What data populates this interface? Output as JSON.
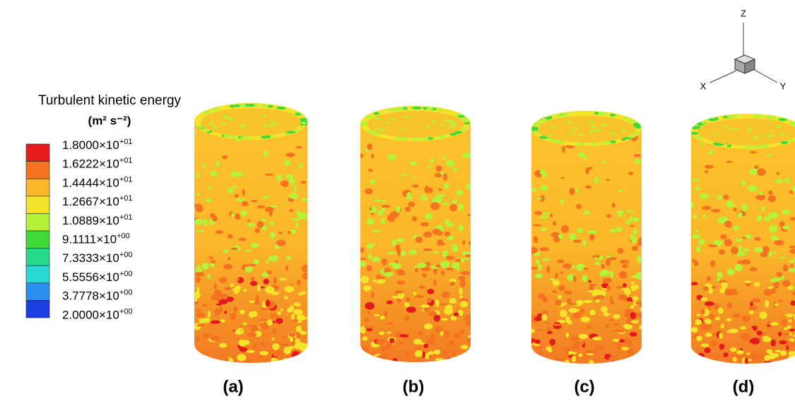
{
  "legend": {
    "title": "Turbulent kinetic energy",
    "units": "(m² s⁻²)",
    "entries": [
      {
        "mantissa": "1.8000×10",
        "exponent": "+01",
        "color": "#e41a1c"
      },
      {
        "mantissa": "1.6222×10",
        "exponent": "+01",
        "color": "#f47320"
      },
      {
        "mantissa": "1.4444×10",
        "exponent": "+01",
        "color": "#fbb62a"
      },
      {
        "mantissa": "1.2667×10",
        "exponent": "+01",
        "color": "#f3e32a"
      },
      {
        "mantissa": "1.0889×10",
        "exponent": "+01",
        "color": "#b5f23a"
      },
      {
        "mantissa": "9.1111×10",
        "exponent": "+00",
        "color": "#3fd93a"
      },
      {
        "mantissa": "7.3333×10",
        "exponent": "+00",
        "color": "#27d98b"
      },
      {
        "mantissa": "5.5556×10",
        "exponent": "+00",
        "color": "#2ad9d6"
      },
      {
        "mantissa": "3.7778×10",
        "exponent": "+00",
        "color": "#2a8ff0"
      },
      {
        "mantissa": "2.0000×10",
        "exponent": "+00",
        "color": "#1a3fe0"
      }
    ]
  },
  "panels": [
    {
      "label": "(a)"
    },
    {
      "label": "(b)"
    },
    {
      "label": "(c)"
    },
    {
      "label": "(d)"
    }
  ],
  "axes_triad": {
    "x": "X",
    "y": "Y",
    "z": "Z"
  }
}
